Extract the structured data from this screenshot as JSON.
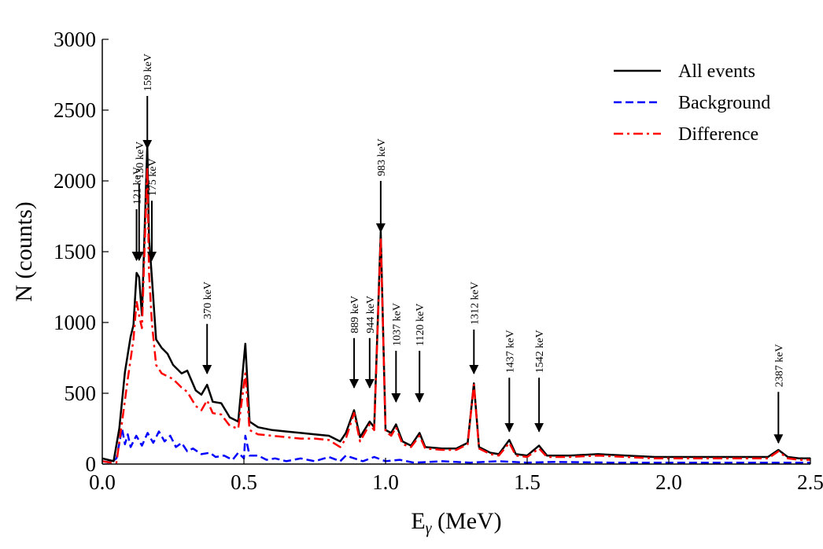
{
  "chart_data": {
    "type": "line",
    "xlabel": "E",
    "xlabel_sub": "γ",
    "xlabel_units": " (MeV)",
    "ylabel": "N (counts)",
    "xlim": [
      0.0,
      2.5
    ],
    "ylim": [
      0,
      3000
    ],
    "x_ticks": [
      0.0,
      0.5,
      1.0,
      1.5,
      2.0,
      2.5
    ],
    "x_tick_labels": [
      "0.0",
      "0.5",
      "1.0",
      "1.5",
      "2.0",
      "2.5"
    ],
    "y_ticks": [
      0,
      500,
      1000,
      1500,
      2000,
      2500,
      3000
    ],
    "y_tick_labels": [
      "0",
      "500",
      "1000",
      "1500",
      "2000",
      "2500",
      "3000"
    ],
    "grid": false,
    "legend_position": "top-right",
    "series": [
      {
        "name": "All events",
        "color": "#000000",
        "dash": "solid",
        "points": [
          [
            0.0,
            40
          ],
          [
            0.02,
            30
          ],
          [
            0.04,
            20
          ],
          [
            0.06,
            250
          ],
          [
            0.08,
            650
          ],
          [
            0.1,
            900
          ],
          [
            0.11,
            980
          ],
          [
            0.121,
            1350
          ],
          [
            0.13,
            1320
          ],
          [
            0.14,
            1050
          ],
          [
            0.159,
            2250
          ],
          [
            0.165,
            1600
          ],
          [
            0.175,
            1320
          ],
          [
            0.19,
            880
          ],
          [
            0.21,
            820
          ],
          [
            0.23,
            780
          ],
          [
            0.25,
            700
          ],
          [
            0.28,
            640
          ],
          [
            0.3,
            660
          ],
          [
            0.33,
            520
          ],
          [
            0.35,
            490
          ],
          [
            0.37,
            560
          ],
          [
            0.39,
            440
          ],
          [
            0.42,
            430
          ],
          [
            0.45,
            330
          ],
          [
            0.48,
            300
          ],
          [
            0.505,
            850
          ],
          [
            0.52,
            300
          ],
          [
            0.55,
            260
          ],
          [
            0.6,
            240
          ],
          [
            0.65,
            230
          ],
          [
            0.7,
            220
          ],
          [
            0.75,
            210
          ],
          [
            0.8,
            200
          ],
          [
            0.84,
            160
          ],
          [
            0.86,
            220
          ],
          [
            0.889,
            380
          ],
          [
            0.91,
            190
          ],
          [
            0.944,
            300
          ],
          [
            0.96,
            260
          ],
          [
            0.983,
            1640
          ],
          [
            1.0,
            240
          ],
          [
            1.02,
            220
          ],
          [
            1.037,
            280
          ],
          [
            1.06,
            160
          ],
          [
            1.09,
            130
          ],
          [
            1.12,
            220
          ],
          [
            1.14,
            120
          ],
          [
            1.2,
            110
          ],
          [
            1.25,
            110
          ],
          [
            1.29,
            150
          ],
          [
            1.312,
            570
          ],
          [
            1.33,
            120
          ],
          [
            1.37,
            80
          ],
          [
            1.4,
            70
          ],
          [
            1.437,
            170
          ],
          [
            1.46,
            70
          ],
          [
            1.5,
            60
          ],
          [
            1.542,
            130
          ],
          [
            1.57,
            60
          ],
          [
            1.65,
            60
          ],
          [
            1.75,
            70
          ],
          [
            1.85,
            60
          ],
          [
            1.95,
            50
          ],
          [
            2.05,
            50
          ],
          [
            2.15,
            50
          ],
          [
            2.25,
            50
          ],
          [
            2.35,
            50
          ],
          [
            2.387,
            100
          ],
          [
            2.42,
            50
          ],
          [
            2.46,
            40
          ],
          [
            2.5,
            40
          ]
        ]
      },
      {
        "name": "Background",
        "color": "#0000ff",
        "dash": "dashed",
        "points": [
          [
            0.0,
            20
          ],
          [
            0.03,
            10
          ],
          [
            0.05,
            40
          ],
          [
            0.07,
            250
          ],
          [
            0.08,
            140
          ],
          [
            0.09,
            210
          ],
          [
            0.1,
            120
          ],
          [
            0.12,
            200
          ],
          [
            0.14,
            130
          ],
          [
            0.16,
            220
          ],
          [
            0.18,
            150
          ],
          [
            0.2,
            230
          ],
          [
            0.22,
            160
          ],
          [
            0.24,
            200
          ],
          [
            0.26,
            120
          ],
          [
            0.28,
            150
          ],
          [
            0.3,
            90
          ],
          [
            0.32,
            110
          ],
          [
            0.35,
            70
          ],
          [
            0.38,
            80
          ],
          [
            0.4,
            50
          ],
          [
            0.43,
            60
          ],
          [
            0.46,
            30
          ],
          [
            0.48,
            80
          ],
          [
            0.5,
            40
          ],
          [
            0.505,
            200
          ],
          [
            0.52,
            60
          ],
          [
            0.55,
            60
          ],
          [
            0.58,
            30
          ],
          [
            0.61,
            40
          ],
          [
            0.65,
            20
          ],
          [
            0.7,
            40
          ],
          [
            0.75,
            20
          ],
          [
            0.8,
            50
          ],
          [
            0.84,
            20
          ],
          [
            0.86,
            60
          ],
          [
            0.89,
            40
          ],
          [
            0.92,
            20
          ],
          [
            0.96,
            50
          ],
          [
            1.0,
            20
          ],
          [
            1.05,
            30
          ],
          [
            1.1,
            10
          ],
          [
            1.2,
            20
          ],
          [
            1.3,
            10
          ],
          [
            1.4,
            20
          ],
          [
            1.5,
            10
          ],
          [
            1.6,
            15
          ],
          [
            1.8,
            10
          ],
          [
            2.0,
            10
          ],
          [
            2.2,
            10
          ],
          [
            2.4,
            10
          ],
          [
            2.5,
            10
          ]
        ]
      },
      {
        "name": "Difference",
        "color": "#ff0000",
        "dash": "dashdot",
        "points": [
          [
            0.0,
            20
          ],
          [
            0.03,
            10
          ],
          [
            0.05,
            10
          ],
          [
            0.07,
            300
          ],
          [
            0.09,
            600
          ],
          [
            0.11,
            880
          ],
          [
            0.121,
            1150
          ],
          [
            0.13,
            1050
          ],
          [
            0.14,
            960
          ],
          [
            0.159,
            2100
          ],
          [
            0.165,
            1350
          ],
          [
            0.175,
            1000
          ],
          [
            0.19,
            700
          ],
          [
            0.21,
            640
          ],
          [
            0.23,
            620
          ],
          [
            0.25,
            600
          ],
          [
            0.28,
            540
          ],
          [
            0.3,
            510
          ],
          [
            0.33,
            410
          ],
          [
            0.35,
            380
          ],
          [
            0.37,
            450
          ],
          [
            0.39,
            360
          ],
          [
            0.42,
            350
          ],
          [
            0.45,
            270
          ],
          [
            0.48,
            250
          ],
          [
            0.505,
            640
          ],
          [
            0.52,
            240
          ],
          [
            0.55,
            210
          ],
          [
            0.6,
            200
          ],
          [
            0.65,
            190
          ],
          [
            0.7,
            180
          ],
          [
            0.75,
            180
          ],
          [
            0.8,
            170
          ],
          [
            0.84,
            120
          ],
          [
            0.86,
            180
          ],
          [
            0.889,
            360
          ],
          [
            0.91,
            160
          ],
          [
            0.944,
            280
          ],
          [
            0.96,
            240
          ],
          [
            0.983,
            1600
          ],
          [
            1.0,
            230
          ],
          [
            1.02,
            200
          ],
          [
            1.037,
            260
          ],
          [
            1.06,
            140
          ],
          [
            1.09,
            120
          ],
          [
            1.12,
            200
          ],
          [
            1.14,
            110
          ],
          [
            1.2,
            100
          ],
          [
            1.25,
            100
          ],
          [
            1.29,
            140
          ],
          [
            1.312,
            560
          ],
          [
            1.33,
            110
          ],
          [
            1.37,
            70
          ],
          [
            1.4,
            60
          ],
          [
            1.437,
            150
          ],
          [
            1.46,
            60
          ],
          [
            1.5,
            50
          ],
          [
            1.542,
            110
          ],
          [
            1.57,
            50
          ],
          [
            1.65,
            50
          ],
          [
            1.75,
            60
          ],
          [
            1.85,
            50
          ],
          [
            1.95,
            40
          ],
          [
            2.05,
            40
          ],
          [
            2.15,
            40
          ],
          [
            2.25,
            40
          ],
          [
            2.35,
            40
          ],
          [
            2.387,
            90
          ],
          [
            2.42,
            40
          ],
          [
            2.46,
            30
          ],
          [
            2.5,
            30
          ]
        ]
      }
    ],
    "annotations": [
      {
        "label": "121 keV",
        "x": 0.121,
        "arrow_from": 1800,
        "arrow_to": 1440
      },
      {
        "label": "130 keV",
        "x": 0.13,
        "arrow_from": 1980,
        "arrow_to": 1440
      },
      {
        "label": "159 keV",
        "x": 0.159,
        "arrow_from": 2600,
        "arrow_to": 2230
      },
      {
        "label": "175 keV",
        "x": 0.175,
        "arrow_from": 1860,
        "arrow_to": 1440
      },
      {
        "label": "370 keV",
        "x": 0.37,
        "arrow_from": 990,
        "arrow_to": 640
      },
      {
        "label": "889 keV",
        "x": 0.889,
        "arrow_from": 890,
        "arrow_to": 540
      },
      {
        "label": "944 keV",
        "x": 0.944,
        "arrow_from": 890,
        "arrow_to": 540
      },
      {
        "label": "983 keV",
        "x": 0.983,
        "arrow_from": 2000,
        "arrow_to": 1640
      },
      {
        "label": "1037 keV",
        "x": 1.037,
        "arrow_from": 800,
        "arrow_to": 440
      },
      {
        "label": "1120 keV",
        "x": 1.12,
        "arrow_from": 800,
        "arrow_to": 440
      },
      {
        "label": "1312 keV",
        "x": 1.312,
        "arrow_from": 950,
        "arrow_to": 640
      },
      {
        "label": "1437 keV",
        "x": 1.437,
        "arrow_from": 610,
        "arrow_to": 230
      },
      {
        "label": "1542 keV",
        "x": 1.542,
        "arrow_from": 610,
        "arrow_to": 230
      },
      {
        "label": "2387 keV",
        "x": 2.387,
        "arrow_from": 510,
        "arrow_to": 150
      }
    ]
  }
}
